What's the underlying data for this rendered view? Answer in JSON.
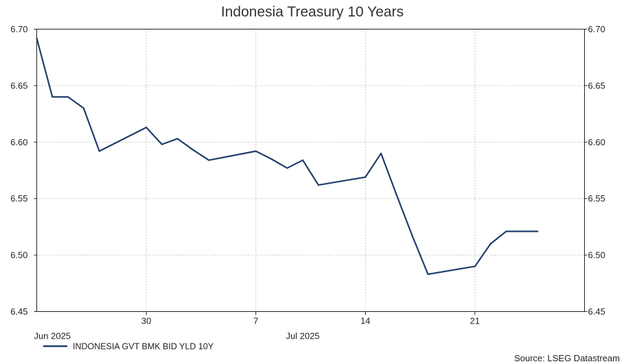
{
  "chart_data": {
    "type": "line",
    "title": "Indonesia Treasury 10 Years",
    "ylim": [
      6.45,
      6.7
    ],
    "y_ticks": [
      "6.70",
      "6.65",
      "6.60",
      "6.55",
      "6.50",
      "6.45"
    ],
    "y_tick_values": [
      6.7,
      6.65,
      6.6,
      6.55,
      6.5,
      6.45
    ],
    "x_day_ticks": [
      {
        "label": "30",
        "date": "2025-06-30"
      },
      {
        "label": "7",
        "date": "2025-07-07"
      },
      {
        "label": "14",
        "date": "2025-07-14"
      },
      {
        "label": "21",
        "date": "2025-07-21"
      }
    ],
    "x_month_labels": [
      {
        "label": "Jun 2025",
        "date": "2025-06-24"
      },
      {
        "label": "Jul 2025",
        "date": "2025-07-10"
      }
    ],
    "x_range": [
      "2025-06-23",
      "2025-07-28"
    ],
    "grid": true,
    "legend_position": "bottom-left",
    "source": "Source: LSEG Datastream",
    "line_color": "#1f3d6b",
    "series": [
      {
        "name": "INDONESIA GVT BMK BID YLD 10Y",
        "x": [
          "2025-06-23",
          "2025-06-24",
          "2025-06-25",
          "2025-06-26",
          "2025-06-27",
          "2025-06-30",
          "2025-07-01",
          "2025-07-02",
          "2025-07-03",
          "2025-07-04",
          "2025-07-07",
          "2025-07-08",
          "2025-07-09",
          "2025-07-10",
          "2025-07-11",
          "2025-07-14",
          "2025-07-15",
          "2025-07-16",
          "2025-07-17",
          "2025-07-18",
          "2025-07-21",
          "2025-07-22",
          "2025-07-23",
          "2025-07-24",
          "2025-07-25"
        ],
        "values": [
          6.692,
          6.64,
          6.64,
          6.63,
          6.592,
          6.613,
          6.598,
          6.603,
          6.593,
          6.584,
          6.592,
          6.585,
          6.577,
          6.584,
          6.562,
          6.569,
          6.59,
          6.553,
          6.517,
          6.483,
          6.49,
          6.51,
          6.521,
          6.521,
          6.521
        ]
      }
    ]
  }
}
